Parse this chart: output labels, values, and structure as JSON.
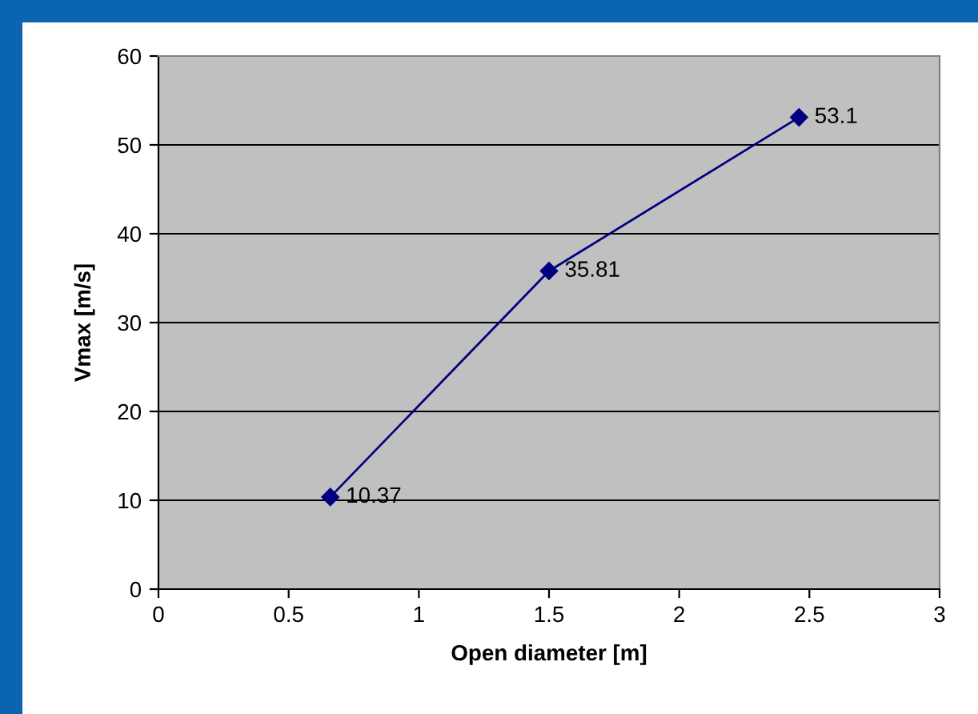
{
  "chart_data": {
    "type": "line",
    "xlabel": "Open diameter [m]",
    "ylabel": "Vmax [m/s]",
    "x": [
      0.66,
      1.5,
      2.46
    ],
    "series": [
      {
        "color": "#000080",
        "values": [
          10.37,
          35.81,
          53.1
        ]
      }
    ],
    "xlim": [
      0,
      3
    ],
    "xticks": [
      0,
      0.5,
      1,
      1.5,
      2,
      2.5,
      3
    ],
    "ylim": [
      0,
      60
    ],
    "yticks": [
      0,
      10,
      20,
      30,
      40,
      50,
      60
    ],
    "grid": "y",
    "marker": "diamond",
    "line_style": "solid",
    "data_labels": true,
    "legend": false
  }
}
